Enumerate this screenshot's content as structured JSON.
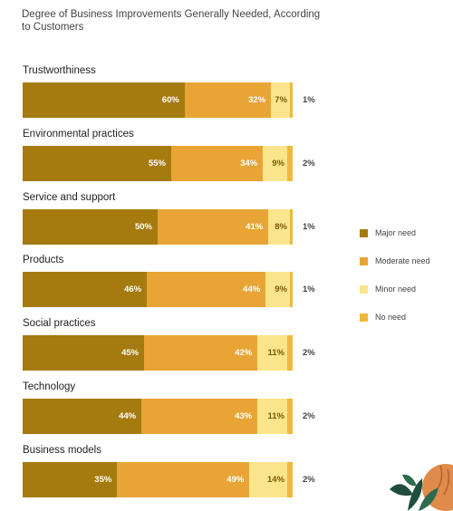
{
  "chart_data": {
    "type": "bar",
    "orientation": "horizontal",
    "stacked": true,
    "title": "Degree of Business Improvements Generally Needed, According to Customers",
    "categories": [
      "Trustworthiness",
      "Environmental practices",
      "Service and support",
      "Products",
      "Social practices",
      "Technology",
      "Business models"
    ],
    "series": [
      {
        "name": "Major need",
        "color": "#a57b10",
        "values": [
          60,
          55,
          50,
          46,
          45,
          44,
          35
        ],
        "labels": [
          "60%",
          "55%",
          "50%",
          "46%",
          "45%",
          "44%",
          "35%"
        ]
      },
      {
        "name": "Moderate need",
        "color": "#e8a535",
        "values": [
          32,
          34,
          41,
          44,
          42,
          43,
          49
        ],
        "labels": [
          "32%",
          "34%",
          "41%",
          "44%",
          "42%",
          "43%",
          "49%"
        ]
      },
      {
        "name": "Minor need",
        "color": "#fbe58c",
        "values": [
          7,
          9,
          8,
          9,
          11,
          11,
          14
        ],
        "labels": [
          "7%",
          "9%",
          "8%",
          "9%",
          "11%",
          "11%",
          "14%"
        ]
      },
      {
        "name": "No need",
        "color": "#f0b93c",
        "values": [
          1,
          2,
          1,
          1,
          2,
          2,
          2
        ],
        "labels": [
          "1%",
          "2%",
          "1%",
          "1%",
          "2%",
          "2%",
          "2%"
        ]
      }
    ],
    "xlim": [
      0,
      100
    ],
    "legend_position": "right",
    "grid": false
  }
}
